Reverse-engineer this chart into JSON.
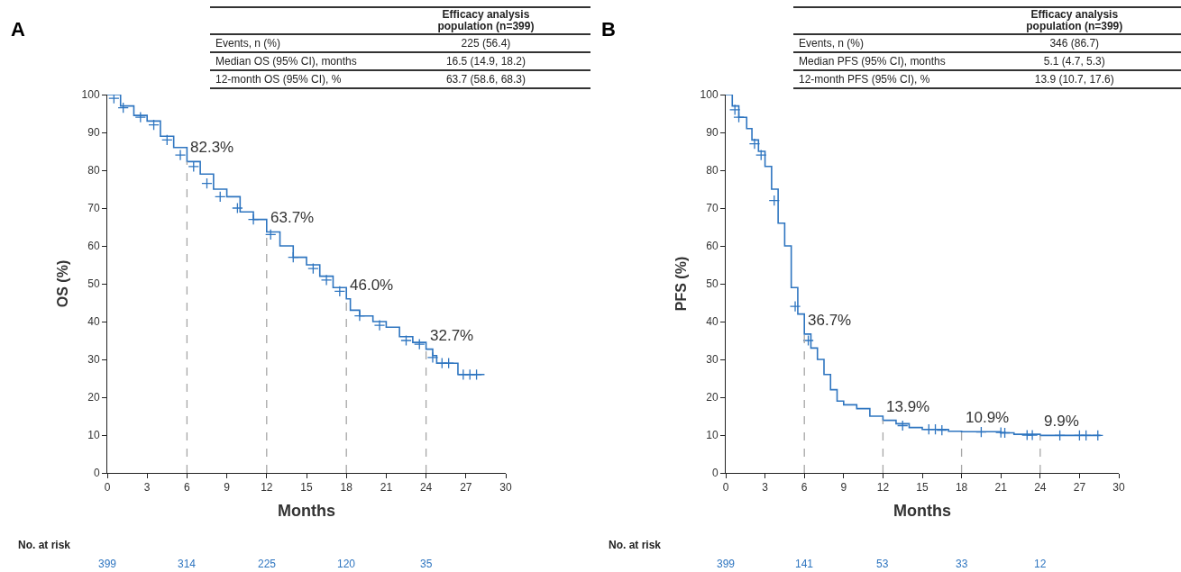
{
  "chart_data": [
    {
      "type": "step",
      "title": "A",
      "xlabel": "Months",
      "ylabel": "OS (%)",
      "xlim": [
        0,
        30
      ],
      "xticks": [
        0,
        3,
        6,
        9,
        12,
        15,
        18,
        21,
        24,
        27,
        30
      ],
      "ylim": [
        0,
        100
      ],
      "yticks": [
        0,
        10,
        20,
        30,
        40,
        50,
        60,
        70,
        80,
        90,
        100
      ],
      "grid": false,
      "series": [
        {
          "type": "step",
          "color": "#2e75c0",
          "marker": "none",
          "x": [
            0,
            1,
            2,
            3,
            4,
            5,
            6,
            7,
            8,
            9,
            10,
            11,
            12,
            13,
            14,
            15,
            16,
            17,
            18,
            18.3,
            19,
            20,
            21,
            22,
            23,
            24,
            24.5,
            24.8,
            26.3,
            26.4,
            28.4
          ],
          "values": [
            100,
            97,
            94.5,
            93,
            89,
            86,
            82.3,
            79,
            75,
            73,
            69,
            67,
            63.7,
            60,
            57,
            55,
            52,
            49,
            46,
            43,
            41.5,
            40,
            38.5,
            36,
            34.5,
            32.7,
            31,
            29,
            29,
            26,
            26
          ]
        },
        {
          "type": "scatter",
          "color": "#2e75c0",
          "marker": "cross",
          "x": [
            0.5,
            1.2,
            2.5,
            3.5,
            4.5,
            5.5,
            6.5,
            7.5,
            8.5,
            9.8,
            11,
            12.3,
            14,
            15.5,
            16.5,
            17.5,
            19,
            20.5,
            22.5,
            23.5,
            24.5,
            25.2,
            25.7,
            26.8,
            27.3,
            27.8
          ],
          "values": [
            99,
            96.5,
            94,
            92,
            88,
            84,
            81,
            76.5,
            73,
            70,
            67,
            63,
            57,
            54,
            51,
            48,
            41.5,
            39,
            35,
            34,
            30.5,
            29,
            29,
            26,
            26,
            26
          ]
        }
      ],
      "ref_lines": [
        {
          "axis": "x",
          "value": 6,
          "color": "#a6a6a6",
          "line_style": "dashed"
        },
        {
          "axis": "x",
          "value": 12,
          "color": "#a6a6a6",
          "line_style": "dashed"
        },
        {
          "axis": "x",
          "value": 18,
          "color": "#a6a6a6",
          "line_style": "dashed"
        },
        {
          "axis": "x",
          "value": 24,
          "color": "#a6a6a6",
          "line_style": "dashed"
        }
      ],
      "annotations": [
        "Efficacy analysis population (n=399)",
        "Events, n (%)",
        "225 (56.4)",
        "Median OS (95% CI), months",
        "16.5 (14.9, 18.2)",
        "12-month OS (95% CI), %",
        "63.7 (58.6, 68.3)",
        "No. at risk",
        "399",
        "314",
        "225",
        "120",
        "35",
        {
          "text": "82.3%",
          "x": 6,
          "y": 82.3
        },
        {
          "text": "63.7%",
          "x": 12,
          "y": 63.7
        },
        {
          "text": "46.0%",
          "x": 18,
          "y": 46.0
        },
        {
          "text": "32.7%",
          "x": 24,
          "y": 32.7
        }
      ]
    },
    {
      "type": "step",
      "title": "B",
      "xlabel": "Months",
      "ylabel": "PFS (%)",
      "xlim": [
        0,
        30
      ],
      "xticks": [
        0,
        3,
        6,
        9,
        12,
        15,
        18,
        21,
        24,
        27,
        30
      ],
      "ylim": [
        0,
        100
      ],
      "yticks": [
        0,
        10,
        20,
        30,
        40,
        50,
        60,
        70,
        80,
        90,
        100
      ],
      "grid": false,
      "series": [
        {
          "type": "step",
          "color": "#2e75c0",
          "marker": "none",
          "x": [
            0,
            0.5,
            1,
            1.6,
            2,
            2.5,
            3,
            3.5,
            4,
            4.5,
            5,
            5.5,
            6,
            6.5,
            7,
            7.5,
            8,
            8.5,
            9,
            10,
            11,
            12,
            13,
            14,
            15,
            17,
            18,
            21,
            22,
            24,
            28.6
          ],
          "values": [
            100,
            97,
            94,
            91,
            88,
            85,
            81,
            75,
            66,
            60,
            49,
            42,
            36.7,
            33,
            30,
            26,
            22,
            19,
            18,
            17,
            15,
            13.9,
            13,
            12,
            11.5,
            11,
            10.9,
            10.6,
            10.2,
            9.9,
            9.9
          ]
        },
        {
          "type": "scatter",
          "color": "#2e75c0",
          "marker": "cross",
          "x": [
            0.7,
            1,
            2.2,
            2.7,
            3.7,
            5.3,
            6.3,
            13.5,
            15.5,
            16,
            16.5,
            19.5,
            21,
            21.3,
            23,
            23.4,
            25.5,
            27,
            27.5,
            28.4
          ],
          "values": [
            96,
            94,
            87,
            84,
            72,
            44,
            35,
            12.5,
            11.5,
            11.5,
            11.3,
            10.8,
            10.7,
            10.6,
            10,
            10,
            9.9,
            9.9,
            9.9,
            9.9
          ]
        }
      ],
      "ref_lines": [
        {
          "axis": "x",
          "value": 6,
          "color": "#a6a6a6",
          "line_style": "dashed"
        },
        {
          "axis": "x",
          "value": 12,
          "color": "#a6a6a6",
          "line_style": "dashed"
        },
        {
          "axis": "x",
          "value": 18,
          "color": "#a6a6a6",
          "line_style": "dashed"
        },
        {
          "axis": "x",
          "value": 24,
          "color": "#a6a6a6",
          "line_style": "dashed"
        }
      ],
      "annotations": [
        "Efficacy analysis population (n=399)",
        "Events, n (%)",
        "346 (86.7)",
        "Median PFS (95% CI), months",
        "5.1 (4.7, 5.3)",
        "12-month PFS (95% CI), %",
        "13.9 (10.7, 17.6)",
        "No. at risk",
        "399",
        "141",
        "53",
        "33",
        "12",
        {
          "text": "36.7%",
          "x": 6,
          "y": 36.7
        },
        {
          "text": "13.9%",
          "x": 12,
          "y": 13.9
        },
        {
          "text": "10.9%",
          "x": 18,
          "y": 10.9
        },
        {
          "text": "9.9%",
          "x": 24,
          "y": 9.9
        }
      ]
    }
  ]
}
